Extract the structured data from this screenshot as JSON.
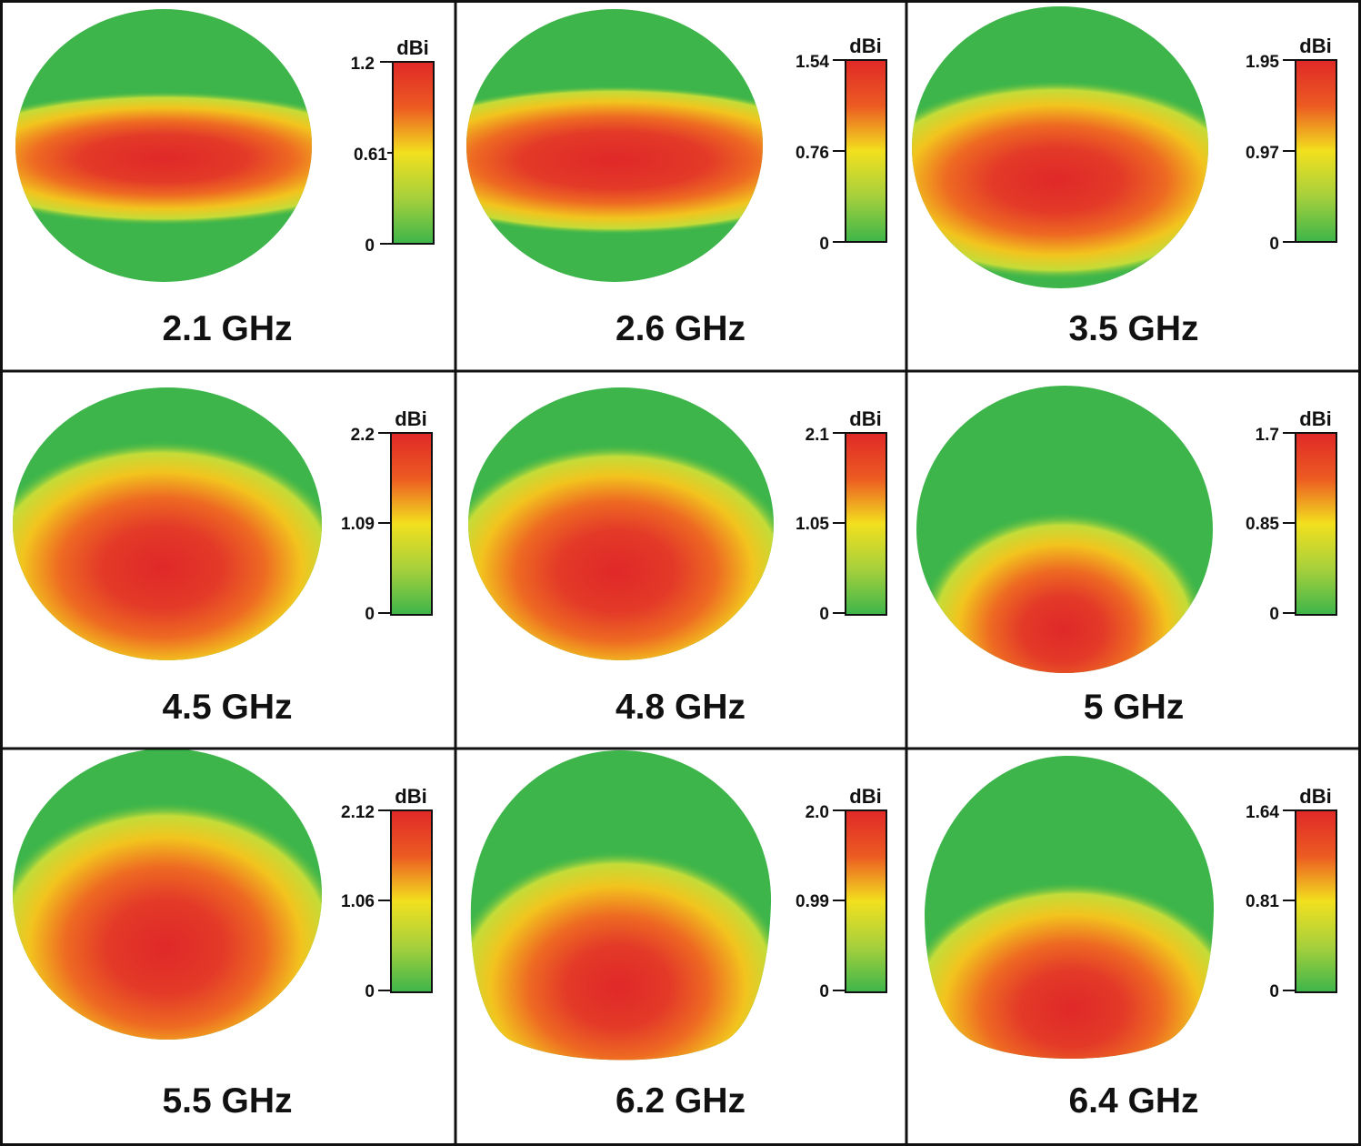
{
  "figure": {
    "panels": [
      {
        "frequency_label": "2.1 GHz",
        "unit": "dBi",
        "ticks": [
          "1.2",
          "0.61",
          "0"
        ]
      },
      {
        "frequency_label": "2.6 GHz",
        "unit": "dBi",
        "ticks": [
          "1.54",
          "0.76",
          "0"
        ]
      },
      {
        "frequency_label": "3.5 GHz",
        "unit": "dBi",
        "ticks": [
          "1.95",
          "0.97",
          "0"
        ]
      },
      {
        "frequency_label": "4.5 GHz",
        "unit": "dBi",
        "ticks": [
          "2.2",
          "1.09",
          "0"
        ]
      },
      {
        "frequency_label": "4.8 GHz",
        "unit": "dBi",
        "ticks": [
          "2.1",
          "1.05",
          "0"
        ]
      },
      {
        "frequency_label": "5 GHz",
        "unit": "dBi",
        "ticks": [
          "1.7",
          "0.85",
          "0"
        ]
      },
      {
        "frequency_label": "5.5 GHz",
        "unit": "dBi",
        "ticks": [
          "2.12",
          "1.06",
          "0"
        ]
      },
      {
        "frequency_label": "6.2 GHz",
        "unit": "dBi",
        "ticks": [
          "2.0",
          "0.99",
          "0"
        ]
      },
      {
        "frequency_label": "6.4 GHz",
        "unit": "dBi",
        "ticks": [
          "1.64",
          "0.81",
          "0"
        ]
      }
    ],
    "colors": {
      "gain_max": "#e02828",
      "gain_high": "#ee6a22",
      "gain_mid": "#f2e01e",
      "gain_low": "#b8d83a",
      "gain_min": "#3db54a",
      "border": "#111111"
    }
  }
}
